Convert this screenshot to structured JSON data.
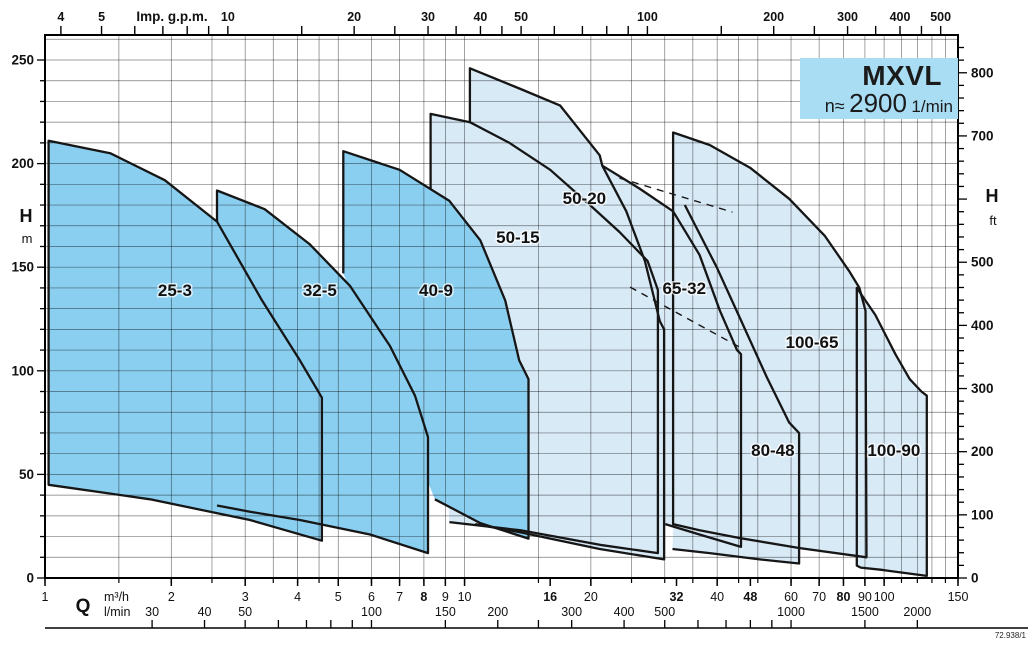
{
  "figure": {
    "ref": "72.938/1"
  },
  "title_box": {
    "model": "MXVL",
    "speed_prefix": "n≈",
    "speed_value": "2900",
    "speed_unit": "1/min",
    "bg": "#a9ddf3"
  },
  "chart_data": {
    "type": "area",
    "title": "MXVL",
    "subtitle": "n≈ 2900 1/min",
    "description": "Composite pump performance envelope chart (head H vs flow Q, log flow axis)",
    "colors": {
      "dark": "#8bcff0",
      "light": "#d9eaf7",
      "outline": "#161616",
      "grid_rgba": "rgba(0,0,0,0.52)",
      "frame": "#000000"
    },
    "x_axis_bottom": {
      "label": "Q",
      "unit_m3h": "m³/h",
      "unit_lmin": "l/min",
      "scale": "log",
      "range_m3h": [
        1,
        150
      ],
      "m3h_labeled": [
        1,
        2,
        3,
        4,
        5,
        6,
        7,
        8,
        9,
        10,
        16,
        20,
        32,
        40,
        48,
        60,
        70,
        80,
        90,
        100,
        150
      ],
      "m3h_bold": [
        8,
        16,
        32,
        48,
        80
      ],
      "lmin_ticks": [
        30,
        40,
        50,
        60,
        70,
        80,
        90,
        100,
        150,
        200,
        250,
        300,
        400,
        500,
        600,
        700,
        800,
        900,
        1000,
        1500,
        2000
      ],
      "lmin_labeled": [
        30,
        40,
        50,
        100,
        150,
        200,
        300,
        400,
        500,
        1000,
        1500,
        2000
      ],
      "lmin_per_m3h": 16.667
    },
    "x_axis_top": {
      "label": "Imp. g.p.m.",
      "ticks": [
        4,
        5,
        6,
        7,
        8,
        9,
        10,
        15,
        20,
        25,
        30,
        35,
        40,
        45,
        50,
        60,
        70,
        80,
        90,
        100,
        150,
        200,
        250,
        300,
        350,
        400,
        450,
        500
      ],
      "labeled": [
        4,
        5,
        10,
        20,
        30,
        40,
        50,
        100,
        200,
        300,
        400,
        500
      ],
      "gpm_per_m3h": 3.666
    },
    "y_axis_left": {
      "label": "H",
      "unit": "m",
      "range": [
        0,
        250
      ],
      "labeled": [
        0,
        50,
        100,
        150,
        200,
        250
      ],
      "grid_min": 0,
      "grid_max": 260,
      "grid_step": 10
    },
    "y_axis_right": {
      "label": "H",
      "unit": "ft",
      "labeled": [
        0,
        100,
        200,
        300,
        400,
        500,
        700,
        800
      ],
      "tick_step": 20,
      "tick_max": 840,
      "m_per_ft": 0.3048
    },
    "q_gridlines": [
      1,
      1.5,
      2,
      2.5,
      3,
      3.5,
      4,
      4.5,
      5,
      6,
      7,
      8,
      9,
      10,
      15,
      20,
      25,
      30,
      35,
      40,
      45,
      50,
      60,
      70,
      80,
      90,
      100,
      110,
      120,
      130,
      140,
      150
    ],
    "envelopes": [
      {
        "name": "50-15",
        "family": "light",
        "closed": false,
        "label_pos": [
          13.4,
          164.5
        ],
        "points": [
          [
            8.3,
            188
          ],
          [
            8.3,
            224
          ],
          [
            10.3,
            220
          ],
          [
            12.8,
            210
          ],
          [
            16,
            197
          ],
          [
            19.9,
            180
          ],
          [
            23.4,
            167
          ],
          [
            27.3,
            153
          ],
          [
            28.9,
            139
          ],
          [
            28.9,
            12
          ],
          [
            21,
            16
          ],
          [
            13.6,
            23
          ],
          [
            9.2,
            27
          ]
        ]
      },
      {
        "name": "50-20",
        "family": "light",
        "closed": false,
        "label_pos": [
          19.3,
          183.4
        ],
        "points": [
          [
            10.3,
            220
          ],
          [
            10.3,
            246
          ],
          [
            13.6,
            236
          ],
          [
            16.9,
            228
          ],
          [
            21,
            204
          ],
          [
            21.3,
            199
          ],
          [
            24.3,
            177
          ],
          [
            26.9,
            153
          ],
          [
            29.2,
            124
          ],
          [
            29.9,
            120
          ],
          [
            29.9,
            9
          ],
          [
            21,
            14
          ],
          [
            13.6,
            22
          ],
          [
            10.6,
            26
          ]
        ]
      },
      {
        "name": "65-32",
        "family": "light",
        "closed": false,
        "label_pos": [
          33.4,
          140
        ],
        "points": [
          [
            21.3,
            199
          ],
          [
            26.1,
            188
          ],
          [
            31.4,
            177
          ],
          [
            36.3,
            156
          ],
          [
            40.6,
            129
          ],
          [
            44.6,
            110
          ],
          [
            45.6,
            108
          ],
          [
            45.6,
            15
          ],
          [
            36.3,
            21
          ],
          [
            30.1,
            26
          ]
        ]
      },
      {
        "name": "80-48",
        "family": "light",
        "closed": false,
        "label_pos": [
          54.3,
          61.8
        ],
        "points": [
          [
            33.5,
            180
          ],
          [
            39.9,
            150
          ],
          [
            45.2,
            126
          ],
          [
            52.5,
            97
          ],
          [
            59.4,
            75
          ],
          [
            62.7,
            70
          ],
          [
            62.7,
            7
          ],
          [
            50.5,
            9
          ],
          [
            38.4,
            12
          ],
          [
            31.3,
            14
          ]
        ]
      },
      {
        "name": "100-65",
        "family": "light",
        "closed": true,
        "label_pos": [
          67.3,
          114
        ],
        "points": [
          [
            31.4,
            26
          ],
          [
            31.4,
            215
          ],
          [
            38.4,
            209
          ],
          [
            47.9,
            198
          ],
          [
            59.4,
            183
          ],
          [
            72.3,
            165
          ],
          [
            82.6,
            148
          ],
          [
            87.3,
            140
          ],
          [
            90.3,
            129
          ],
          [
            90.8,
            10
          ],
          [
            62.7,
            14.5
          ],
          [
            45.2,
            19.3
          ],
          [
            36.3,
            23
          ]
        ]
      },
      {
        "name": "100-90",
        "family": "light",
        "closed": true,
        "label_pos": [
          105.5,
          61.8
        ],
        "points": [
          [
            86.1,
            6
          ],
          [
            86.1,
            140
          ],
          [
            95.3,
            127
          ],
          [
            106.4,
            108
          ],
          [
            115.1,
            96
          ],
          [
            122.7,
            90
          ],
          [
            126.4,
            88
          ],
          [
            126.4,
            1
          ],
          [
            98,
            4
          ],
          [
            88,
            5
          ]
        ]
      },
      {
        "name": "25-3",
        "family": "dark",
        "closed": true,
        "label_pos": [
          2.04,
          139
        ],
        "points": [
          [
            1.02,
            211
          ],
          [
            1.43,
            205
          ],
          [
            1.93,
            192
          ],
          [
            2.57,
            172
          ],
          [
            3.29,
            134
          ],
          [
            4.05,
            105
          ],
          [
            4.57,
            87
          ],
          [
            4.57,
            18
          ],
          [
            3.08,
            28
          ],
          [
            1.78,
            38
          ],
          [
            1.02,
            45
          ]
        ]
      },
      {
        "name": "32-5",
        "family": "dark",
        "closed": false,
        "label_pos": [
          4.52,
          139
        ],
        "points": [
          [
            2.57,
            172
          ],
          [
            2.57,
            187
          ],
          [
            3.34,
            178
          ],
          [
            4.28,
            161
          ],
          [
            5.33,
            141
          ],
          [
            6.64,
            112
          ],
          [
            7.62,
            88
          ],
          [
            8.18,
            68
          ],
          [
            8.18,
            12
          ],
          [
            5.95,
            21
          ],
          [
            4.05,
            28
          ],
          [
            3.08,
            32
          ],
          [
            2.57,
            35
          ]
        ]
      },
      {
        "name": "40-9",
        "family": "dark",
        "closed": false,
        "label_pos": [
          8.55,
          139
        ],
        "points": [
          [
            5.14,
            147
          ],
          [
            5.14,
            206
          ],
          [
            7.0,
            197
          ],
          [
            9.2,
            182
          ],
          [
            10.9,
            163
          ],
          [
            12.5,
            134
          ],
          [
            13.5,
            105
          ],
          [
            14.2,
            96
          ],
          [
            14.2,
            19
          ],
          [
            10.9,
            26.5
          ],
          [
            8.5,
            38
          ]
        ]
      }
    ],
    "dashed_lines": [
      [
        [
          23.4,
          193
        ],
        [
          43.5,
          176.6
        ]
      ],
      [
        [
          24.8,
          140.4
        ],
        [
          45.2,
          111.5
        ]
      ]
    ]
  }
}
